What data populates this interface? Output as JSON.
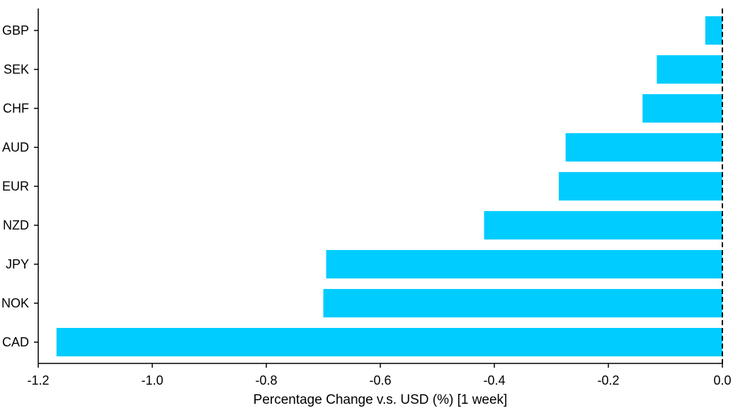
{
  "chart_data": {
    "type": "bar",
    "orientation": "horizontal",
    "categories": [
      "GBP",
      "SEK",
      "CHF",
      "AUD",
      "EUR",
      "NZD",
      "JPY",
      "NOK",
      "CAD"
    ],
    "values": [
      -0.03,
      -0.115,
      -0.14,
      -0.275,
      -0.287,
      -0.418,
      -0.695,
      -0.7,
      -1.168
    ],
    "xlabel": "Percentage Change v.s. USD (%) [1 week]",
    "xlim": [
      -1.2,
      0.0
    ],
    "xticks": [
      -1.2,
      -1.0,
      -0.8,
      -0.6,
      -0.4,
      -0.2,
      0.0
    ],
    "xtick_labels": [
      "-1.2",
      "-1.0",
      "-0.8",
      "-0.6",
      "-0.4",
      "-0.2",
      "0.0"
    ],
    "grid": false,
    "zero_line": "dashed",
    "colors": {
      "bar": "#00CCFF",
      "axis": "#000000"
    }
  }
}
